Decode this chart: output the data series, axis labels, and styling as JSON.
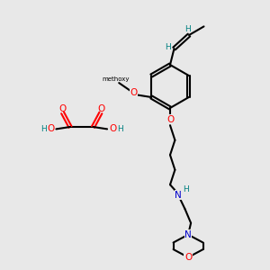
{
  "bg_color": "#e8e8e8",
  "bond_color": "#000000",
  "atom_colors": {
    "C": "#000000",
    "H": "#008080",
    "N": "#0000cc",
    "O": "#ff0000"
  }
}
